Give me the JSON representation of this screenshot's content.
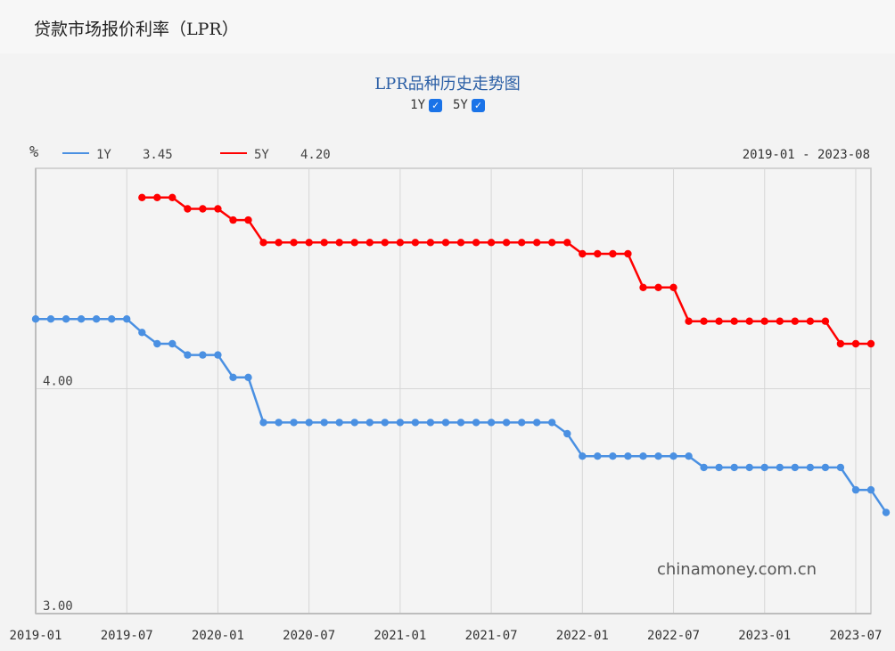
{
  "page": {
    "title": "贷款市场报价利率（LPR）"
  },
  "chart_toggles": [
    {
      "label": "1Y",
      "checked": true
    },
    {
      "label": "5Y",
      "checked": true
    }
  ],
  "watermark": "chinamoney.com.cn",
  "colors": {
    "s1Y": "#4a90e2",
    "s5Y": "#ff0000",
    "title": "#2b5fa6"
  },
  "chart_data": {
    "type": "line",
    "title": "LPR品种历史走势图",
    "ylabel": "%",
    "yticks": [
      {
        "value": 3.0,
        "label": "3.00"
      },
      {
        "value": 4.0,
        "label": "4.00"
      }
    ],
    "ylim": [
      3.0,
      4.98
    ],
    "xticks": [
      "2019-01",
      "2019-07",
      "2020-01",
      "2020-07",
      "2021-01",
      "2021-07",
      "2022-01",
      "2022-07",
      "2023-01",
      "2023-07"
    ],
    "range_label": "2019-01 - 2023-08",
    "grid": true,
    "legend_position": "top-left",
    "series": [
      {
        "name": "1Y",
        "current": "3.45",
        "color": "#4a90e2",
        "start": "2019-01",
        "values": [
          4.31,
          4.31,
          4.31,
          4.31,
          4.31,
          4.31,
          4.31,
          4.25,
          4.2,
          4.2,
          4.15,
          4.15,
          4.15,
          4.05,
          4.05,
          3.85,
          3.85,
          3.85,
          3.85,
          3.85,
          3.85,
          3.85,
          3.85,
          3.85,
          3.85,
          3.85,
          3.85,
          3.85,
          3.85,
          3.85,
          3.85,
          3.85,
          3.85,
          3.85,
          3.85,
          3.8,
          3.7,
          3.7,
          3.7,
          3.7,
          3.7,
          3.7,
          3.7,
          3.7,
          3.65,
          3.65,
          3.65,
          3.65,
          3.65,
          3.65,
          3.65,
          3.65,
          3.65,
          3.65,
          3.55,
          3.55,
          3.45
        ]
      },
      {
        "name": "5Y",
        "current": "4.20",
        "color": "#ff0000",
        "start": "2019-08",
        "values": [
          4.85,
          4.85,
          4.85,
          4.8,
          4.8,
          4.8,
          4.75,
          4.75,
          4.65,
          4.65,
          4.65,
          4.65,
          4.65,
          4.65,
          4.65,
          4.65,
          4.65,
          4.65,
          4.65,
          4.65,
          4.65,
          4.65,
          4.65,
          4.65,
          4.65,
          4.65,
          4.65,
          4.65,
          4.65,
          4.6,
          4.6,
          4.6,
          4.6,
          4.45,
          4.45,
          4.45,
          4.3,
          4.3,
          4.3,
          4.3,
          4.3,
          4.3,
          4.3,
          4.3,
          4.3,
          4.3,
          4.2,
          4.2,
          4.2
        ]
      }
    ]
  }
}
